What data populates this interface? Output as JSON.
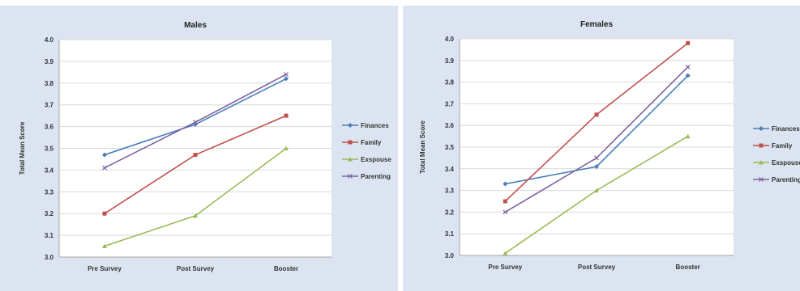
{
  "chart_data": [
    {
      "type": "line",
      "title": "Males",
      "xlabel": "",
      "ylabel": "Total Mean Score",
      "categories": [
        "Pre Survey",
        "Post Survey",
        "Booster"
      ],
      "ylim": [
        3.0,
        4.0
      ],
      "yticks": [
        "3.0",
        "3.1",
        "3.2",
        "3.3",
        "3.4",
        "3.5",
        "3.6",
        "3.7",
        "3.8",
        "3.9",
        "4.0"
      ],
      "grid": true,
      "legend_position": "right",
      "series": [
        {
          "name": "Finances",
          "color": "#4a7ebb",
          "marker": "diamond",
          "values": [
            3.47,
            3.61,
            3.82
          ]
        },
        {
          "name": "Family",
          "color": "#c0504d",
          "marker": "square",
          "values": [
            3.2,
            3.47,
            3.65
          ]
        },
        {
          "name": "Exspouse",
          "color": "#9bbb59",
          "marker": "triangle",
          "values": [
            3.05,
            3.19,
            3.5
          ]
        },
        {
          "name": "Parenting",
          "color": "#7d60a0",
          "marker": "x",
          "values": [
            3.41,
            3.62,
            3.84
          ]
        }
      ]
    },
    {
      "type": "line",
      "title": "Females",
      "xlabel": "",
      "ylabel": "Total Mean Score",
      "categories": [
        "Pre Survey",
        "Post Survey",
        "Booster"
      ],
      "ylim": [
        3.0,
        4.0
      ],
      "yticks": [
        "3.0",
        "3.1",
        "3.2",
        "3.3",
        "3.4",
        "3.5",
        "3.6",
        "3.7",
        "3.8",
        "3.9",
        "4.0"
      ],
      "grid": true,
      "legend_position": "right",
      "series": [
        {
          "name": "Finances",
          "color": "#4a7ebb",
          "marker": "diamond",
          "values": [
            3.33,
            3.41,
            3.83
          ]
        },
        {
          "name": "Family",
          "color": "#c0504d",
          "marker": "square",
          "values": [
            3.25,
            3.65,
            3.98
          ]
        },
        {
          "name": "Exspouse",
          "color": "#9bbb59",
          "marker": "triangle",
          "values": [
            3.01,
            3.3,
            3.55
          ]
        },
        {
          "name": "Parenting",
          "color": "#7d60a0",
          "marker": "x",
          "values": [
            3.2,
            3.45,
            3.87
          ]
        }
      ]
    }
  ]
}
